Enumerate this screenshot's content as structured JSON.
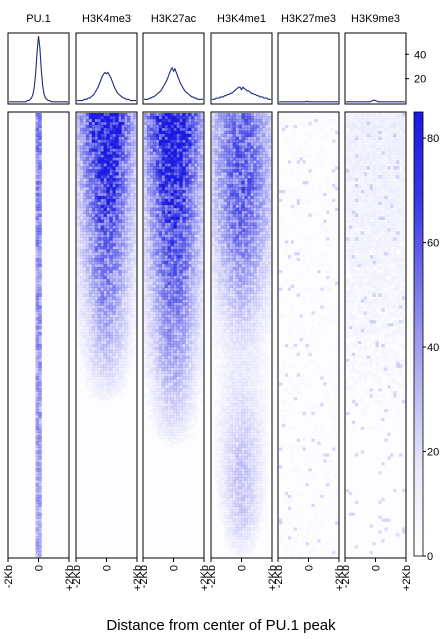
{
  "chart_data": {
    "type": "heatmap",
    "xlabel": "Distance from center of PU.1 peak",
    "x_ticks": [
      "-2Kb",
      "0",
      "+2Kb"
    ],
    "profile_yticks": [
      20,
      40
    ],
    "colorbar": {
      "ticks": [
        0,
        20,
        40,
        60,
        80
      ],
      "range": [
        0,
        85
      ],
      "low_color": "#ffffff",
      "high_color": "#1a1ae0"
    },
    "line_color": "#1f2a80",
    "panels": [
      {
        "name": "PU.1",
        "profile": [
          1,
          1,
          1,
          1,
          1,
          1,
          1,
          1,
          1,
          1,
          1,
          1,
          1,
          2,
          2,
          3,
          4,
          7,
          13,
          25,
          42,
          55,
          45,
          27,
          14,
          7,
          4,
          3,
          2,
          2,
          1,
          1,
          1,
          1,
          1,
          1,
          1,
          1,
          1,
          1,
          1,
          1,
          1
        ]
      },
      {
        "name": "H3K4me3",
        "profile": [
          2,
          2,
          2,
          2,
          2,
          3,
          3,
          3,
          4,
          4,
          5,
          6,
          7,
          9,
          11,
          13,
          16,
          19,
          22,
          24,
          25,
          24,
          25,
          23,
          21,
          18,
          15,
          12,
          10,
          8,
          7,
          6,
          5,
          4,
          4,
          3,
          3,
          3,
          2,
          2,
          2,
          2,
          2
        ]
      },
      {
        "name": "H3K27ac",
        "profile": [
          3,
          3,
          3,
          3,
          4,
          4,
          5,
          5,
          6,
          7,
          8,
          9,
          10,
          12,
          14,
          16,
          18,
          21,
          24,
          27,
          29,
          26,
          28,
          25,
          22,
          19,
          16,
          14,
          12,
          10,
          9,
          8,
          7,
          6,
          5,
          5,
          4,
          4,
          3,
          3,
          3,
          3,
          3
        ]
      },
      {
        "name": "H3K4me1",
        "profile": [
          3,
          3,
          3,
          4,
          4,
          4,
          5,
          5,
          5,
          6,
          6,
          7,
          7,
          8,
          8,
          9,
          10,
          11,
          12,
          13,
          13,
          11,
          13,
          12,
          11,
          10,
          10,
          9,
          8,
          8,
          7,
          7,
          6,
          6,
          5,
          5,
          5,
          4,
          4,
          4,
          3,
          3,
          3
        ]
      },
      {
        "name": "H3K27me3",
        "profile": [
          1,
          1,
          1,
          1,
          1,
          1,
          1,
          1,
          1,
          1,
          1,
          1,
          1,
          1,
          1,
          1,
          1,
          1,
          1,
          1,
          1.5,
          1,
          1,
          1,
          1,
          1,
          1,
          1,
          1,
          1,
          1,
          1,
          1,
          1,
          1,
          1,
          1,
          1,
          1,
          1,
          1,
          1,
          1
        ]
      },
      {
        "name": "H3K9me3",
        "profile": [
          1,
          1,
          1,
          1,
          1,
          1,
          1,
          1,
          1,
          1,
          1,
          1,
          1,
          1,
          1,
          1,
          1,
          1,
          1.5,
          2,
          2.5,
          2,
          1.5,
          1,
          1,
          1,
          1,
          1,
          1,
          1,
          1,
          1,
          1,
          1,
          1,
          1,
          1,
          1,
          1,
          1,
          1,
          1,
          1
        ]
      }
    ],
    "profile_ylim": [
      0,
      55
    ]
  }
}
